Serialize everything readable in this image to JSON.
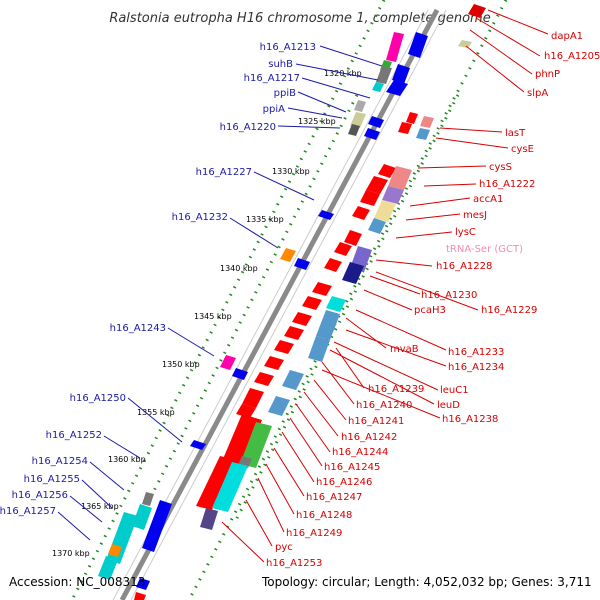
{
  "title": "Ralstonia eutropha H16 chromosome 1, complete genome",
  "accession": "Accession: NC_008313",
  "summary": "Topology: circular; Length: 4,052,032 bp; Genes: 3,711",
  "colors": {
    "backbone": "#8a8a8a",
    "dots": "#1f8a1f",
    "left_label": "#1a1aa6",
    "right_label": "#d90000",
    "trna_label": "#f08cb4"
  },
  "kbp_marks": [
    "1320 kbp",
    "1325 kbp",
    "1330 kbp",
    "1335 kbp",
    "1340 kbp",
    "1345 kbp",
    "1350 kbp",
    "1355 kbp",
    "1360 kbp",
    "1365 kbp",
    "1370 kbp"
  ],
  "left_labels": [
    "h16_A1213",
    "suhB",
    "h16_A1217",
    "ppiB",
    "ppiA",
    "h16_A1220",
    "h16_A1227",
    "h16_A1232",
    "h16_A1243",
    "h16_A1250",
    "h16_A1252",
    "h16_A1254",
    "h16_A1255",
    "h16_A1256",
    "h16_A1257"
  ],
  "right_labels": [
    "dapA1",
    "h16_A1205",
    "phnP",
    "slpA",
    "lasT",
    "cysE",
    "cysS",
    "h16_A1222",
    "accA1",
    "mesJ",
    "lysC",
    "tRNA-Ser (GCT)",
    "h16_A1228",
    "h16_A1230",
    "pcaH3",
    "h16_A1229",
    "mvaB",
    "h16_A1233",
    "h16_A1234",
    "h16_A1239",
    "leuC1",
    "h16_A1240",
    "leuD",
    "h16_A1241",
    "h16_A1238",
    "h16_A1242",
    "h16_A1244",
    "h16_A1245",
    "h16_A1246",
    "h16_A1247",
    "h16_A1248",
    "h16_A1249",
    "pyc",
    "h16_A1253"
  ]
}
